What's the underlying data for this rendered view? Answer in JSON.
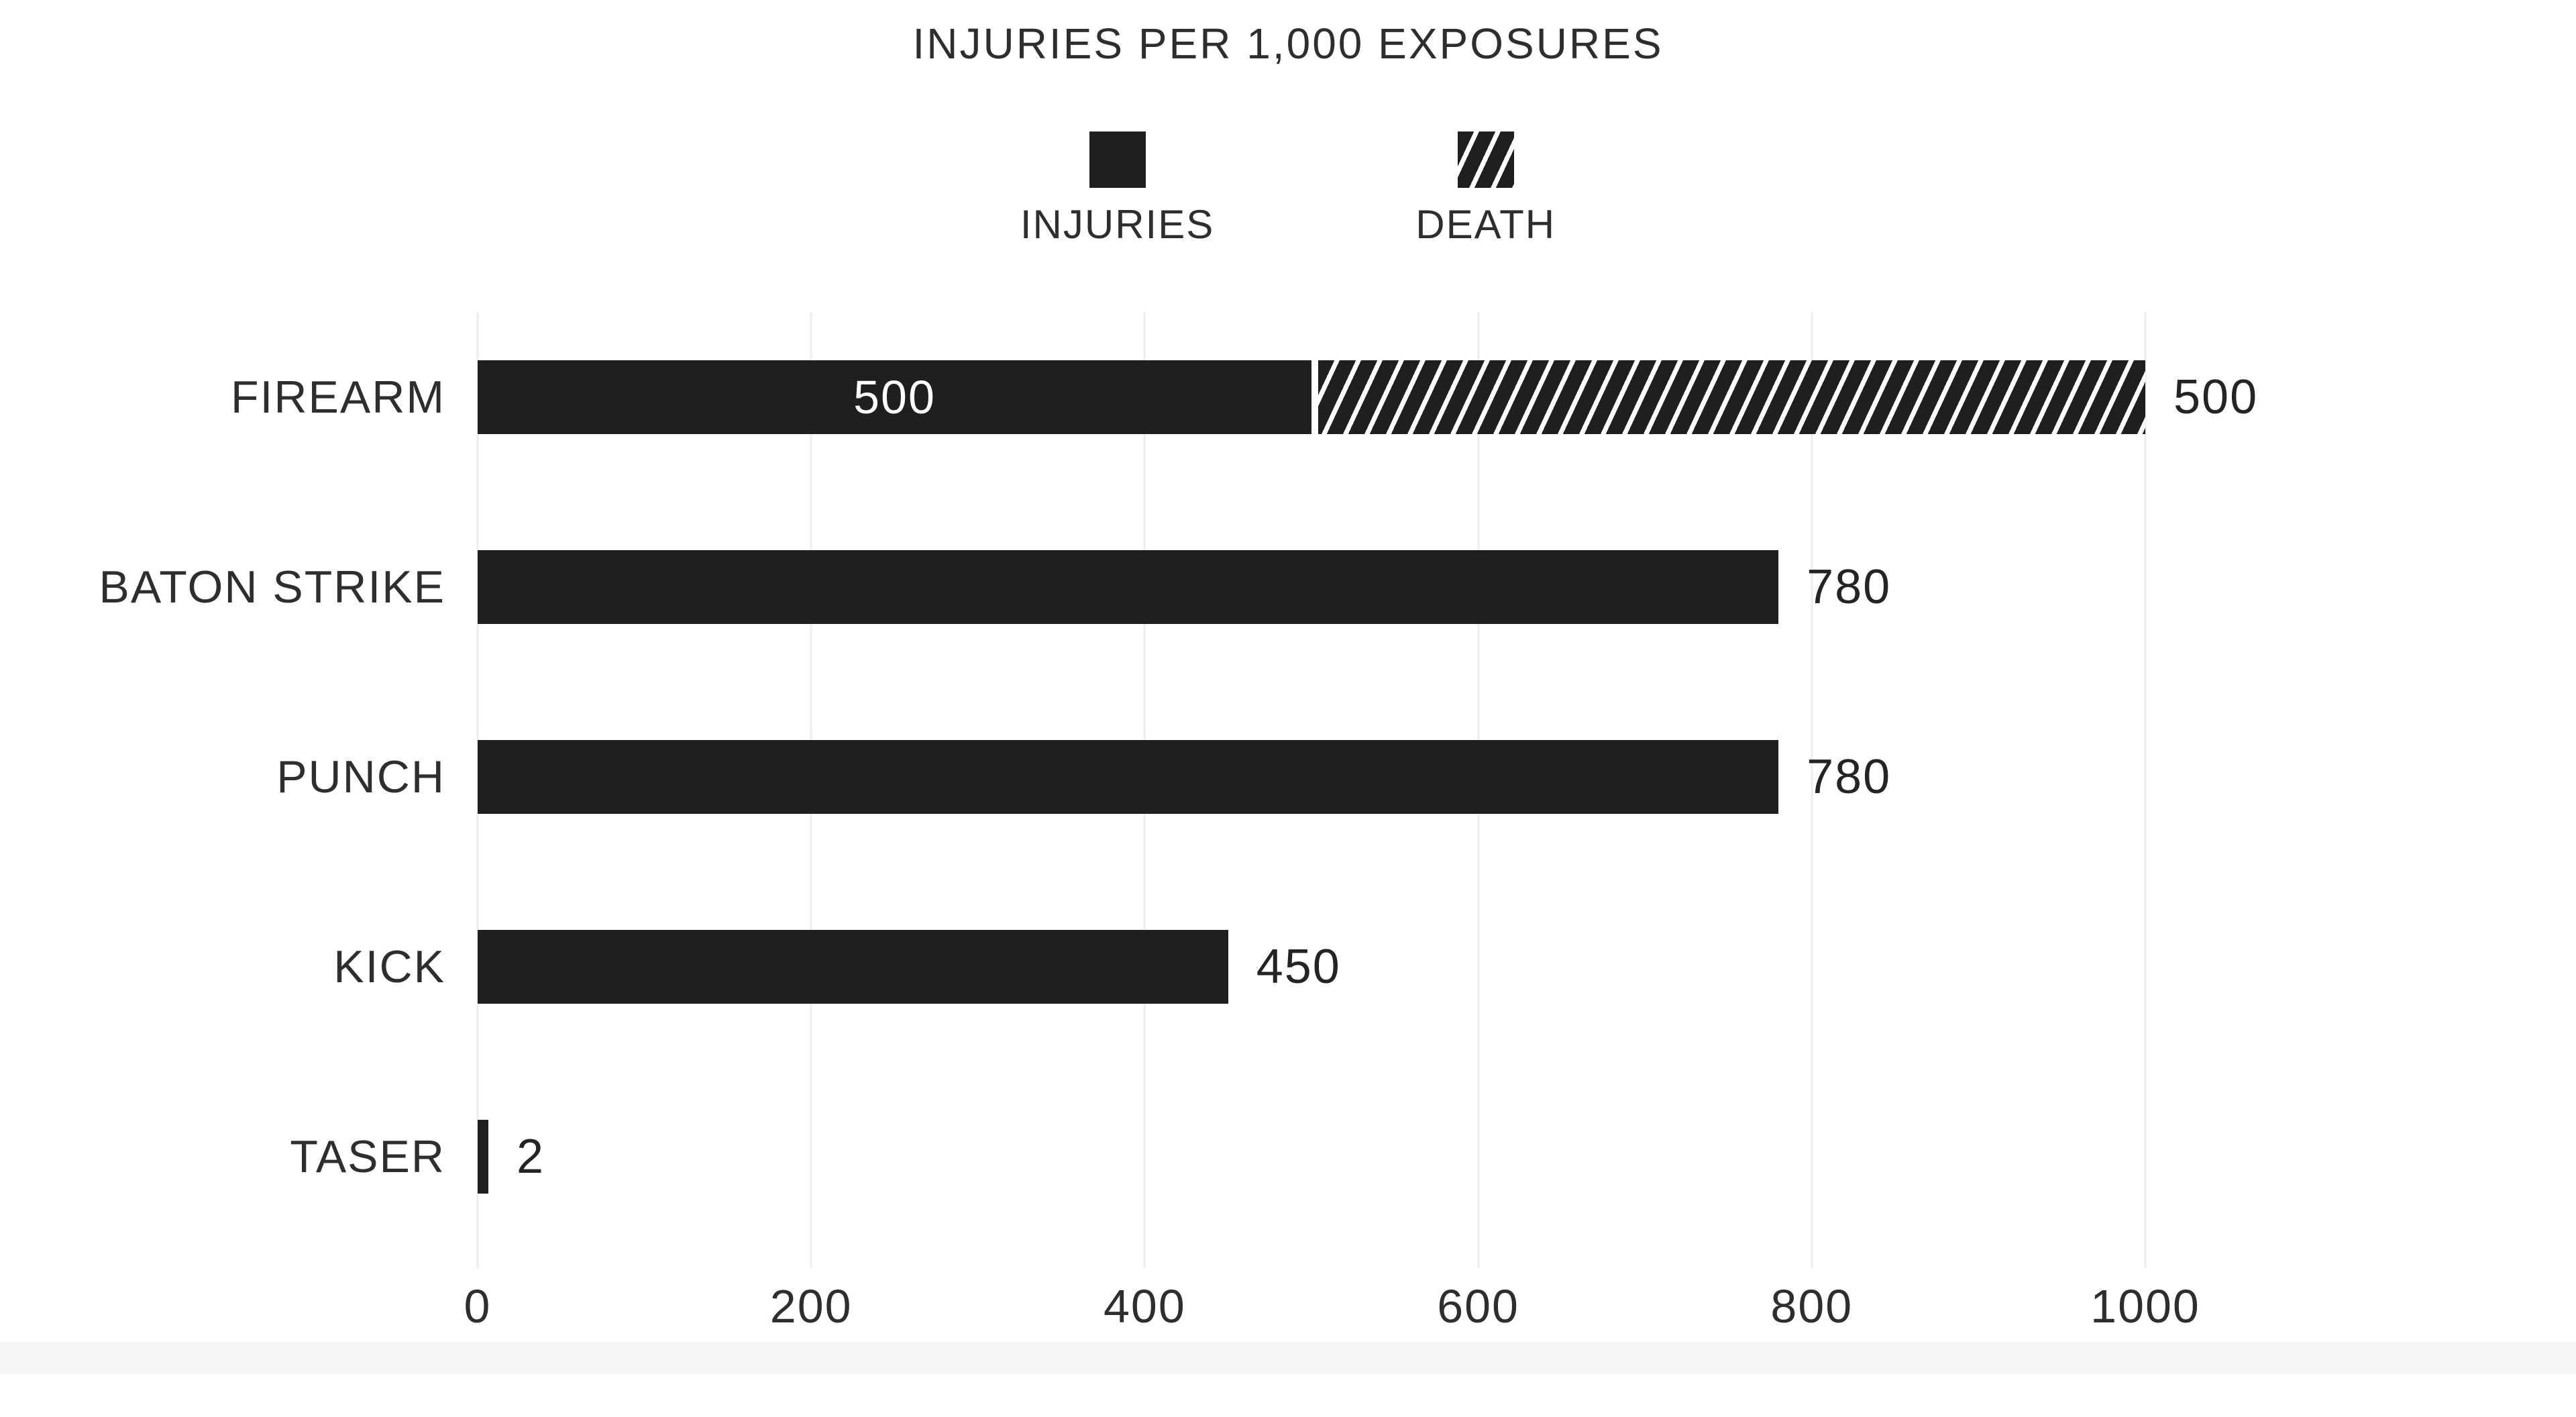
{
  "colors": {
    "bar": "#1f1f1f",
    "text": "#2e2e2e",
    "gridline": "#ededed",
    "inside_value_text": "#ffffff",
    "background": "#ffffff"
  },
  "chart_data": {
    "type": "bar",
    "orientation": "horizontal",
    "stacked": true,
    "title": "INJURIES PER 1,000 EXPOSURES",
    "legend_position": "top",
    "legend": [
      {
        "label": "INJURIES",
        "style": "solid"
      },
      {
        "label": "DEATH",
        "style": "hatched"
      }
    ],
    "categories": [
      "FIREARM",
      "BATON STRIKE",
      "PUNCH",
      "KICK",
      "TASER"
    ],
    "series": [
      {
        "name": "INJURIES",
        "values": [
          500,
          780,
          780,
          450,
          2
        ]
      },
      {
        "name": "DEATH",
        "values": [
          500,
          0,
          0,
          0,
          0
        ]
      }
    ],
    "value_labels": [
      {
        "inside": "500",
        "outside": "500"
      },
      {
        "inside": null,
        "outside": "780"
      },
      {
        "inside": null,
        "outside": "780"
      },
      {
        "inside": null,
        "outside": "450"
      },
      {
        "inside": null,
        "outside": "2"
      }
    ],
    "x_ticks": [
      "0",
      "200",
      "400",
      "600",
      "800",
      "1000"
    ],
    "xlim": [
      0,
      1000
    ],
    "grid": "vertical"
  }
}
